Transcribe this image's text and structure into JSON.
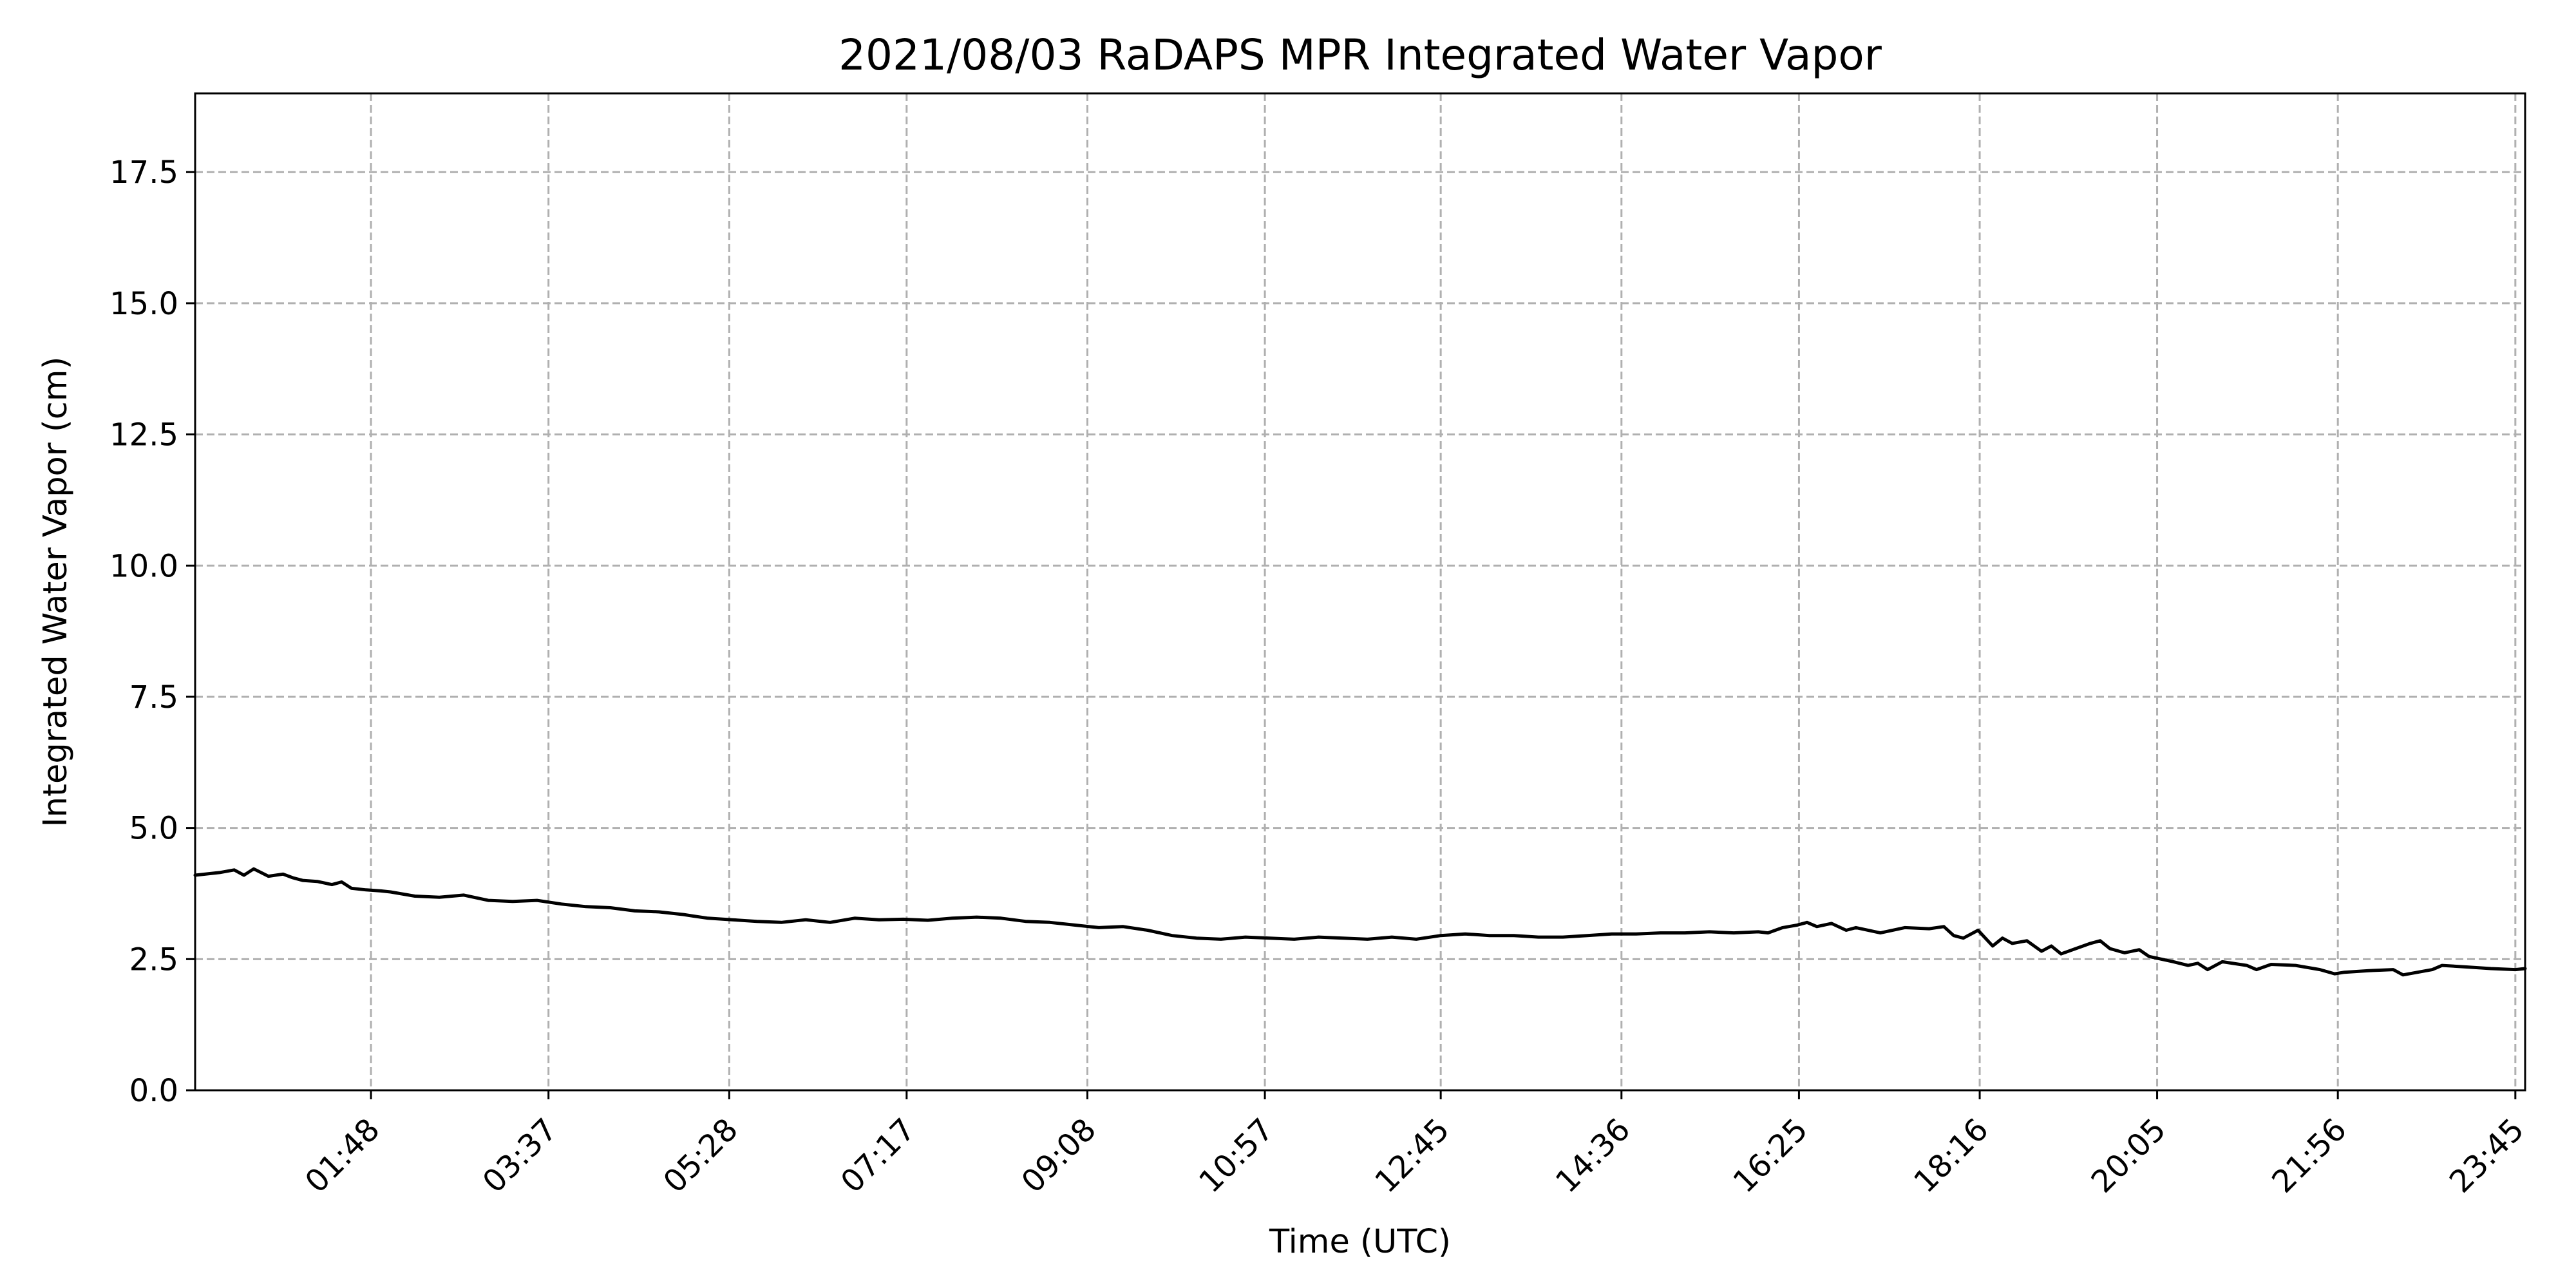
{
  "chart_data": {
    "type": "line",
    "title": "2021/08/03 RaDAPS MPR Integrated Water Vapor",
    "xlabel": "Time (UTC)",
    "ylabel": "Integrated Water Vapor (cm)",
    "x_unit": "hours UTC",
    "xlim": [
      0.0,
      23.85
    ],
    "ylim": [
      0.0,
      19.0
    ],
    "grid": true,
    "legend": "none",
    "x_ticks": [
      {
        "value": 1.8,
        "label": "01:48"
      },
      {
        "value": 3.617,
        "label": "03:37"
      },
      {
        "value": 5.467,
        "label": "05:28"
      },
      {
        "value": 7.283,
        "label": "07:17"
      },
      {
        "value": 9.133,
        "label": "09:08"
      },
      {
        "value": 10.95,
        "label": "10:57"
      },
      {
        "value": 12.75,
        "label": "12:45"
      },
      {
        "value": 14.6,
        "label": "14:36"
      },
      {
        "value": 16.417,
        "label": "16:25"
      },
      {
        "value": 18.267,
        "label": "18:16"
      },
      {
        "value": 20.083,
        "label": "20:05"
      },
      {
        "value": 21.933,
        "label": "21:56"
      },
      {
        "value": 23.75,
        "label": "23:45"
      }
    ],
    "y_ticks": [
      {
        "value": 0.0,
        "label": "0.0"
      },
      {
        "value": 2.5,
        "label": "2.5"
      },
      {
        "value": 5.0,
        "label": "5.0"
      },
      {
        "value": 7.5,
        "label": "7.5"
      },
      {
        "value": 10.0,
        "label": "10.0"
      },
      {
        "value": 12.5,
        "label": "12.5"
      },
      {
        "value": 15.0,
        "label": "15.0"
      },
      {
        "value": 17.5,
        "label": "17.5"
      }
    ],
    "series": [
      {
        "color": "#000000",
        "x": [
          0.0,
          0.25,
          0.4,
          0.5,
          0.6,
          0.75,
          0.9,
          1.0,
          1.1,
          1.25,
          1.4,
          1.5,
          1.6,
          1.75,
          1.9,
          2.0,
          2.25,
          2.5,
          2.75,
          3.0,
          3.25,
          3.5,
          3.75,
          4.0,
          4.25,
          4.5,
          4.75,
          5.0,
          5.1,
          5.25,
          5.5,
          5.75,
          6.0,
          6.25,
          6.5,
          6.75,
          7.0,
          7.25,
          7.5,
          7.75,
          8.0,
          8.25,
          8.5,
          8.75,
          9.0,
          9.25,
          9.5,
          9.75,
          10.0,
          10.25,
          10.5,
          10.75,
          11.0,
          11.25,
          11.5,
          11.75,
          12.0,
          12.25,
          12.5,
          12.75,
          13.0,
          13.25,
          13.5,
          13.75,
          14.0,
          14.25,
          14.5,
          14.75,
          15.0,
          15.25,
          15.5,
          15.75,
          16.0,
          16.1,
          16.25,
          16.4,
          16.5,
          16.6,
          16.75,
          16.9,
          17.0,
          17.25,
          17.5,
          17.75,
          17.9,
          18.0,
          18.1,
          18.25,
          18.4,
          18.5,
          18.6,
          18.75,
          18.9,
          19.0,
          19.1,
          19.25,
          19.4,
          19.5,
          19.6,
          19.75,
          19.9,
          20.0,
          20.25,
          20.4,
          20.5,
          20.6,
          20.75,
          21.0,
          21.1,
          21.25,
          21.5,
          21.75,
          21.9,
          22.0,
          22.25,
          22.5,
          22.6,
          22.75,
          22.9,
          23.0,
          23.25,
          23.5,
          23.75,
          23.85
        ],
        "values": [
          4.1,
          4.15,
          4.2,
          4.1,
          4.22,
          4.08,
          4.12,
          4.05,
          4.0,
          3.98,
          3.92,
          3.97,
          3.85,
          3.82,
          3.8,
          3.78,
          3.7,
          3.68,
          3.72,
          3.62,
          3.6,
          3.62,
          3.55,
          3.5,
          3.48,
          3.42,
          3.4,
          3.35,
          3.32,
          3.28,
          3.25,
          3.22,
          3.2,
          3.25,
          3.2,
          3.28,
          3.25,
          3.26,
          3.24,
          3.28,
          3.3,
          3.28,
          3.22,
          3.2,
          3.15,
          3.1,
          3.12,
          3.05,
          2.95,
          2.9,
          2.88,
          2.92,
          2.9,
          2.88,
          2.92,
          2.9,
          2.88,
          2.92,
          2.88,
          2.95,
          2.98,
          2.95,
          2.95,
          2.92,
          2.92,
          2.95,
          2.98,
          2.98,
          3.0,
          3.0,
          3.02,
          3.0,
          3.02,
          3.0,
          3.1,
          3.15,
          3.2,
          3.12,
          3.18,
          3.05,
          3.1,
          3.0,
          3.1,
          3.08,
          3.12,
          2.95,
          2.9,
          3.05,
          2.75,
          2.9,
          2.8,
          2.85,
          2.65,
          2.75,
          2.6,
          2.7,
          2.8,
          2.85,
          2.7,
          2.62,
          2.68,
          2.55,
          2.45,
          2.38,
          2.42,
          2.3,
          2.45,
          2.38,
          2.3,
          2.4,
          2.38,
          2.3,
          2.22,
          2.25,
          2.28,
          2.3,
          2.2,
          2.25,
          2.3,
          2.38,
          2.35,
          2.32,
          2.3,
          2.32
        ]
      }
    ]
  }
}
